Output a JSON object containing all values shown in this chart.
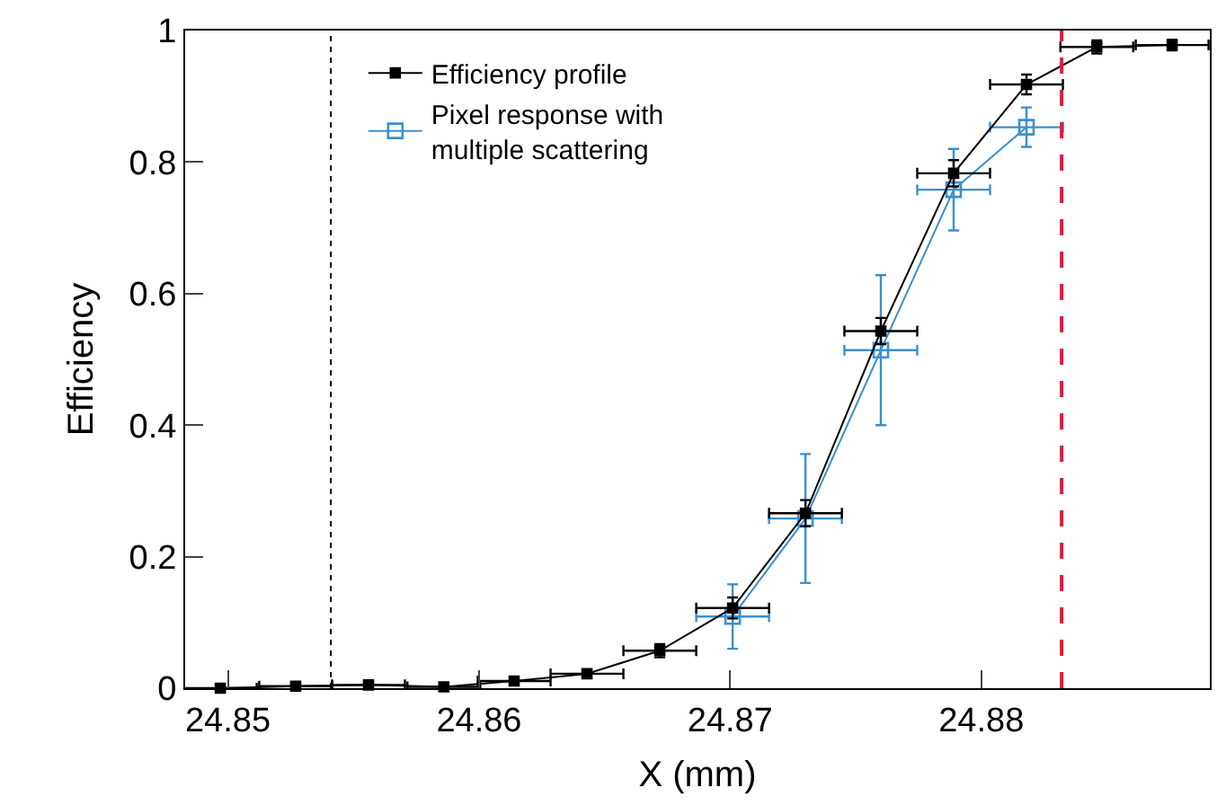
{
  "chart_data": {
    "type": "line",
    "xlabel": "X (mm)",
    "ylabel": "Efficiency",
    "xlim": [
      24.8483,
      24.8891
    ],
    "xticks": [
      24.85,
      24.86,
      24.87,
      24.88
    ],
    "ylim": [
      0,
      1
    ],
    "yticks": [
      0,
      0.2,
      0.4,
      0.6,
      0.8,
      1
    ],
    "legend": "top left",
    "marker": "square",
    "line_style": "solid",
    "ref_lines": [
      {
        "axis": "x",
        "value": 24.8541,
        "color": "#000000",
        "line_style": "dotted"
      },
      {
        "axis": "x",
        "value": 24.8832,
        "color": "#e8143c",
        "line_style": "dashed"
      }
    ],
    "series": [
      {
        "name": "Efficiency profile",
        "color": "#000000",
        "x": [
          24.8497,
          24.8527,
          24.8556,
          24.8586,
          24.8614,
          24.8643,
          24.8672,
          24.8701,
          24.873,
          24.876,
          24.8789,
          24.8818,
          24.8846,
          24.8876
        ],
        "values": [
          0.0,
          0.003,
          0.005,
          0.002,
          0.011,
          0.022,
          0.057,
          0.122,
          0.266,
          0.543,
          0.783,
          0.918,
          0.975,
          0.978
        ],
        "errors": [
          null,
          null,
          null,
          null,
          null,
          null,
          0.01,
          0.016,
          0.02,
          0.02,
          0.02,
          0.015,
          0.01,
          0.008
        ],
        "xerrors": [
          0.00145,
          0.00145,
          0.00145,
          0.00145,
          0.00145,
          0.00145,
          0.00145,
          0.00145,
          0.00145,
          0.00145,
          0.00145,
          0.00145,
          0.00145,
          0.00145
        ]
      },
      {
        "name": "Pixel response with\nmultiple scattering",
        "color": "#3a8fd0",
        "x": [
          24.8701,
          24.873,
          24.876,
          24.8789,
          24.8818
        ],
        "values": [
          0.109,
          0.258,
          0.514,
          0.758,
          0.853
        ],
        "errors": [
          0.049,
          0.098,
          0.114,
          0.062,
          0.03
        ],
        "xerrors": [
          0.00145,
          0.00145,
          0.00145,
          0.00145,
          0.00145
        ]
      }
    ]
  }
}
